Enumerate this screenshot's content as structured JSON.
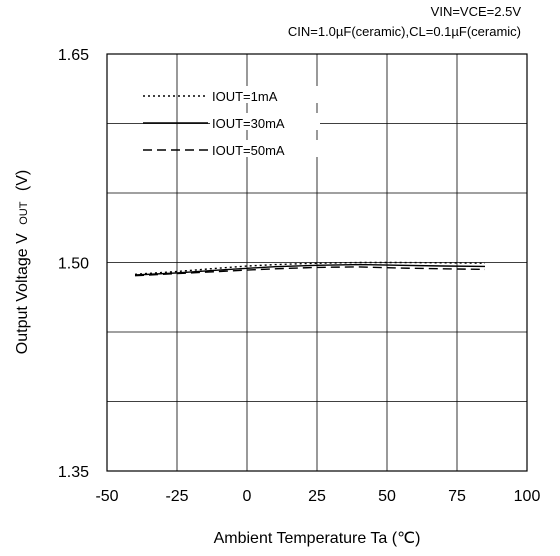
{
  "conditions": {
    "line1": "VIN=VCE=2.5V",
    "line2": "CIN=1.0µF(ceramic),CL=0.1µF(ceramic)"
  },
  "axes": {
    "x_title": "Ambient Temperature Ta (℃)",
    "y_title_main": "Output Voltage V",
    "y_title_sub": "OUT",
    "y_title_unit": "(V)"
  },
  "colors": {
    "line": "#000000",
    "grid": "#000000",
    "background": "#ffffff"
  },
  "chart_data": {
    "type": "line",
    "title": "",
    "xlabel": "Ambient Temperature Ta (℃)",
    "ylabel": "Output Voltage VOUT (V)",
    "xlim": [
      -50,
      100
    ],
    "ylim": [
      1.35,
      1.65
    ],
    "x_ticks": [
      -50,
      -25,
      0,
      25,
      50,
      75,
      100
    ],
    "x_tick_labels": [
      "-50",
      "-25",
      "0",
      "25",
      "50",
      "75",
      "100"
    ],
    "y_ticks": [
      1.35,
      1.5,
      1.65
    ],
    "y_tick_labels": [
      "1.35",
      "1.50",
      "1.65"
    ],
    "grid": true,
    "legend_position": "top-left",
    "series": [
      {
        "name": "IOUT=1mA",
        "style": "dotted",
        "x": [
          -40,
          -25,
          -10,
          0,
          10,
          25,
          40,
          55,
          70,
          85
        ],
        "y": [
          1.4915,
          1.4935,
          1.496,
          1.4975,
          1.4985,
          1.4995,
          1.5,
          1.5,
          1.4998,
          1.4995
        ]
      },
      {
        "name": "IOUT=30mA",
        "style": "solid",
        "x": [
          -40,
          -25,
          -10,
          0,
          10,
          25,
          40,
          55,
          70,
          85
        ],
        "y": [
          1.491,
          1.4925,
          1.4945,
          1.4958,
          1.497,
          1.498,
          1.4985,
          1.498,
          1.4975,
          1.4972
        ]
      },
      {
        "name": "IOUT=50mA",
        "style": "dashed",
        "x": [
          -40,
          -25,
          -10,
          0,
          10,
          25,
          40,
          55,
          70,
          85
        ],
        "y": [
          1.4905,
          1.492,
          1.4935,
          1.4945,
          1.4955,
          1.4965,
          1.4968,
          1.496,
          1.4955,
          1.495
        ]
      }
    ]
  }
}
